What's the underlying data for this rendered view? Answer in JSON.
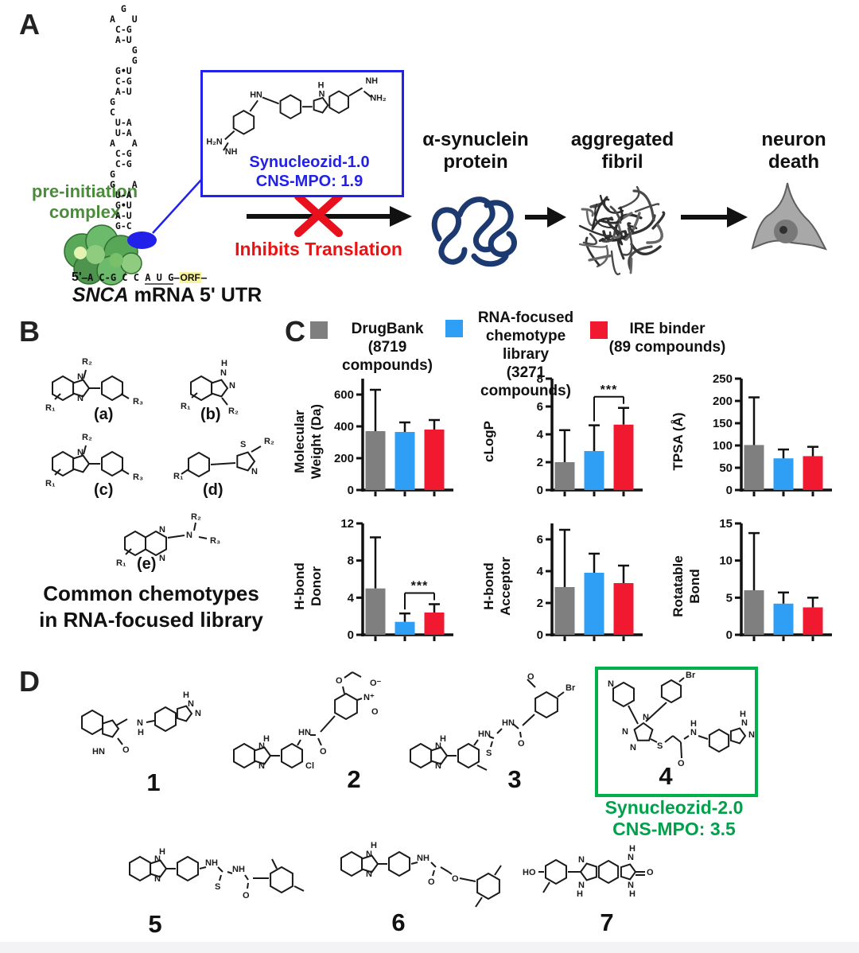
{
  "colors": {
    "blue_accent": "#2121ea",
    "red_accent": "#ee1111",
    "green_text": "#4a8c3a",
    "green_box": "#00b14a",
    "protein_navy": "#1c3a70",
    "orf_highlight": "#f9f39b"
  },
  "panel_a": {
    "label": "A",
    "pre_initiation": [
      "pre-initiation",
      "complex"
    ],
    "rna_lines": [
      "  G",
      "A   U",
      " C-G",
      " A-U",
      "    G",
      "    G",
      " G•U",
      " C-G",
      " A-U",
      "G",
      "C",
      " U-A",
      " U-A",
      "A   A",
      " C-G",
      " C-G",
      "G",
      "G   A",
      " U-A",
      " G•U",
      " A-U",
      " G-C",
      "     A",
      " G•U",
      " G•U",
      " U-A"
    ],
    "five_prime": "5'",
    "dash1": "—",
    "seq_start": "A C-G C C ",
    "seq_aug": "A U G",
    "dash2": "—",
    "seq_orf": "ORF",
    "dash3": "—",
    "mrna_gene": "SNCA",
    "mrna_rest": " mRNA 5' UTR",
    "box": {
      "name": "Synucleozid-1.0",
      "cns": "CNS-MPO: 1.9",
      "atoms": [
        "H₂N",
        "NH",
        "HN",
        "H",
        "N",
        "NH",
        "NH₂"
      ]
    },
    "inhibits": "Inhibits Translation",
    "protein_label": [
      "α-synuclein",
      "protein"
    ],
    "fibril_label": [
      "aggregated",
      "fibril"
    ],
    "neuron_label": [
      "neuron",
      "death"
    ]
  },
  "panel_b": {
    "label": "B",
    "scaffolds": [
      {
        "tag": "(a)",
        "atoms": [
          "R₂",
          "N",
          "N",
          "R₁",
          "R₃"
        ]
      },
      {
        "tag": "(b)",
        "atoms": [
          "H",
          "N",
          "N",
          "R₁",
          "R₂"
        ]
      },
      {
        "tag": "(c)",
        "atoms": [
          "R₂",
          "N",
          "R₁",
          "R₃"
        ]
      },
      {
        "tag": "(d)",
        "atoms": [
          "R₁",
          "S",
          "N",
          "R₂"
        ]
      },
      {
        "tag": "(e)",
        "atoms": [
          "N",
          "N",
          "N",
          "R₂",
          "R₃",
          "R₁"
        ]
      }
    ],
    "caption": [
      "Common chemotypes",
      "in RNA-focused library"
    ]
  },
  "panel_c": {
    "label": "C",
    "series_colors": [
      "#7f7f7f",
      "#2f9ff5",
      "#f11930"
    ],
    "legend": [
      {
        "color": "#7f7f7f",
        "lines": [
          "DrugBank",
          "(8719 compounds)"
        ]
      },
      {
        "color": "#2f9ff5",
        "lines": [
          "RNA-focused",
          "chemotype library",
          "(3271 compounds)"
        ]
      },
      {
        "color": "#f11930",
        "lines": [
          "IRE binder",
          "(89 compounds)"
        ]
      }
    ]
  },
  "chart_data": [
    {
      "type": "bar",
      "ylabel": "Molecular Weight (Da)",
      "ylabel_lines": [
        "Molecular",
        "Weight (Da)"
      ],
      "categories": [
        "DrugBank (8719 compounds)",
        "RNA-focused chemotype library (3271 compounds)",
        "IRE binder (89 compounds)"
      ],
      "values": [
        370,
        365,
        380
      ],
      "error_top": [
        630,
        425,
        440
      ],
      "ylim": [
        0,
        700
      ],
      "yticks": [
        0,
        200,
        400,
        600
      ],
      "significance": null
    },
    {
      "type": "bar",
      "ylabel": "cLogP",
      "ylabel_lines": [
        "cLogP"
      ],
      "categories": [
        "DrugBank (8719 compounds)",
        "RNA-focused chemotype library (3271 compounds)",
        "IRE binder (89 compounds)"
      ],
      "values": [
        2.0,
        2.8,
        4.7
      ],
      "error_top": [
        4.3,
        4.65,
        5.9
      ],
      "ylim": [
        0,
        8
      ],
      "yticks": [
        0,
        2,
        4,
        6,
        8
      ],
      "significance": {
        "pair": [
          1,
          2
        ],
        "label": "***"
      }
    },
    {
      "type": "bar",
      "ylabel": "TPSA (Å)",
      "ylabel_lines": [
        "TPSA (Å)"
      ],
      "categories": [
        "DrugBank (8719 compounds)",
        "RNA-focused chemotype library (3271 compounds)",
        "IRE binder (89 compounds)"
      ],
      "values": [
        101,
        71,
        76
      ],
      "error_top": [
        208,
        91,
        97
      ],
      "ylim": [
        0,
        250
      ],
      "yticks": [
        0,
        50,
        100,
        150,
        200,
        250
      ],
      "significance": null
    },
    {
      "type": "bar",
      "ylabel": "H-bond Donor",
      "ylabel_lines": [
        "H-bond",
        "Donor"
      ],
      "categories": [
        "DrugBank (8719 compounds)",
        "RNA-focused chemotype library (3271 compounds)",
        "IRE binder (89 compounds)"
      ],
      "values": [
        5.0,
        1.4,
        2.4
      ],
      "error_top": [
        10.5,
        2.3,
        3.3
      ],
      "ylim": [
        0,
        12
      ],
      "yticks": [
        0,
        4,
        8,
        12
      ],
      "significance": {
        "pair": [
          1,
          2
        ],
        "label": "***"
      }
    },
    {
      "type": "bar",
      "ylabel": "H-bond Acceptor",
      "ylabel_lines": [
        "H-bond",
        "Acceptor"
      ],
      "categories": [
        "DrugBank (8719 compounds)",
        "RNA-focused chemotype library (3271 compounds)",
        "IRE binder (89 compounds)"
      ],
      "values": [
        3.0,
        3.9,
        3.25
      ],
      "error_top": [
        6.6,
        5.1,
        4.35
      ],
      "ylim": [
        0,
        7
      ],
      "yticks": [
        0,
        2,
        4,
        6
      ],
      "significance": null
    },
    {
      "type": "bar",
      "ylabel": "Rotatable Bond",
      "ylabel_lines": [
        "Rotatable",
        "Bond"
      ],
      "categories": [
        "DrugBank (8719 compounds)",
        "RNA-focused chemotype library (3271 compounds)",
        "IRE binder (89 compounds)"
      ],
      "values": [
        6.0,
        4.2,
        3.7
      ],
      "error_top": [
        13.7,
        5.7,
        5.0
      ],
      "ylim": [
        0,
        15
      ],
      "yticks": [
        0,
        5,
        10,
        15
      ],
      "significance": null
    }
  ],
  "panel_d": {
    "label": "D",
    "compounds": [
      {
        "number": "1",
        "atoms": [
          "HN",
          "O",
          "N",
          "H",
          "H",
          "N",
          "N"
        ]
      },
      {
        "number": "2",
        "atoms": [
          "H",
          "N",
          "N",
          "Cl",
          "HN",
          "O",
          "O",
          "N⁺",
          "O⁻",
          "O"
        ]
      },
      {
        "number": "3",
        "atoms": [
          "H",
          "N",
          "N",
          "HN",
          "S",
          "HN",
          "O",
          "O",
          "Br"
        ]
      },
      {
        "number": "4",
        "atoms": [
          "N",
          "Br",
          "N",
          "N",
          "N",
          "S",
          "O",
          "H",
          "N",
          "H",
          "N",
          "N"
        ]
      },
      {
        "number": "5",
        "atoms": [
          "H",
          "N",
          "N",
          "NH",
          "S",
          "NH",
          "O"
        ]
      },
      {
        "number": "6",
        "atoms": [
          "H",
          "N",
          "N",
          "NH",
          "O",
          "O"
        ]
      },
      {
        "number": "7",
        "atoms": [
          "HO",
          "N",
          "N",
          "H",
          "H",
          "N",
          "N",
          "H",
          "O"
        ]
      }
    ],
    "synucleozid2": {
      "name": "Synucleozid-2.0",
      "cns": "CNS-MPO: 3.5"
    }
  }
}
